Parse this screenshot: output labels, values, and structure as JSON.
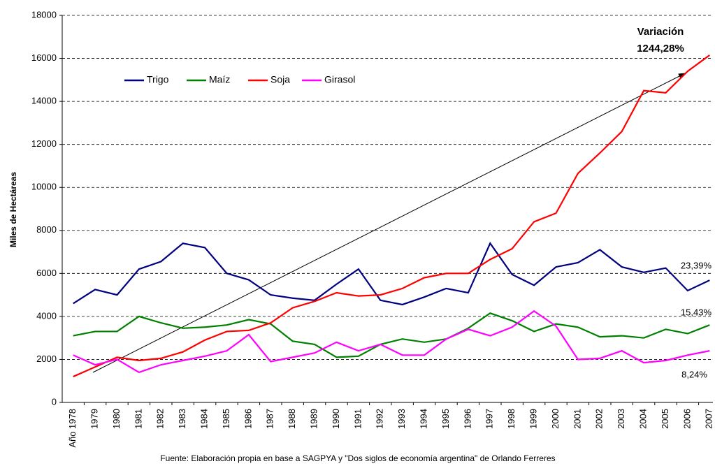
{
  "chart_data": {
    "type": "line",
    "y_label": "Miles de Hectáreas",
    "source": "Fuente: Elaboración propia en base a SAGPYA y \"Dos siglos de economía argentina\" de Orlando Ferreres",
    "categories": [
      "Año 1978",
      "1979",
      "1980",
      "1981",
      "1982",
      "1983",
      "1984",
      "1985",
      "1986",
      "1987",
      "1988",
      "1989",
      "1990",
      "1991",
      "1992",
      "1993",
      "1994",
      "1995",
      "1996",
      "1997",
      "1998",
      "1999",
      "2000",
      "2001",
      "2002",
      "2003",
      "2004",
      "2005",
      "2006",
      "2007"
    ],
    "series": [
      {
        "name": "Trigo",
        "color": "#000080",
        "values": [
          4600,
          5250,
          5000,
          6200,
          6550,
          7400,
          7200,
          6000,
          5700,
          5000,
          4850,
          4750,
          5500,
          6200,
          4750,
          4550,
          4900,
          5300,
          5100,
          7400,
          5950,
          5450,
          6300,
          6500,
          7100,
          6300,
          6050,
          6250,
          5200,
          5680
        ]
      },
      {
        "name": "Maíz",
        "color": "#008000",
        "values": [
          3100,
          3300,
          3300,
          4000,
          3700,
          3450,
          3500,
          3600,
          3850,
          3650,
          2850,
          2700,
          2100,
          2150,
          2700,
          2950,
          2800,
          2950,
          3450,
          4150,
          3800,
          3300,
          3650,
          3500,
          3050,
          3100,
          3000,
          3400,
          3200,
          3600
        ]
      },
      {
        "name": "Soja",
        "color": "#ff0000",
        "values": [
          1200,
          1650,
          2100,
          1950,
          2050,
          2350,
          2900,
          3300,
          3350,
          3700,
          4400,
          4700,
          5100,
          4950,
          5000,
          5300,
          5800,
          6000,
          6000,
          6650,
          7150,
          8400,
          8800,
          10650,
          11600,
          12600,
          14500,
          14400,
          15400,
          16150
        ]
      },
      {
        "name": "Girasol",
        "color": "#ff00ff",
        "values": [
          2200,
          1750,
          2000,
          1400,
          1750,
          1950,
          2150,
          2400,
          3150,
          1900,
          2100,
          2300,
          2800,
          2400,
          2700,
          2200,
          2200,
          2950,
          3400,
          3100,
          3500,
          4250,
          3550,
          2000,
          2050,
          2400,
          1850,
          1950,
          2200,
          2400
        ]
      }
    ],
    "annotations": [
      "Variación",
      "1244,28%",
      "23,39%",
      "15,43%",
      "8,24%"
    ],
    "ylim": [
      0,
      18000
    ],
    "yticks": [
      0,
      2000,
      4000,
      6000,
      8000,
      10000,
      12000,
      14000,
      16000,
      18000
    ],
    "grid": true
  }
}
